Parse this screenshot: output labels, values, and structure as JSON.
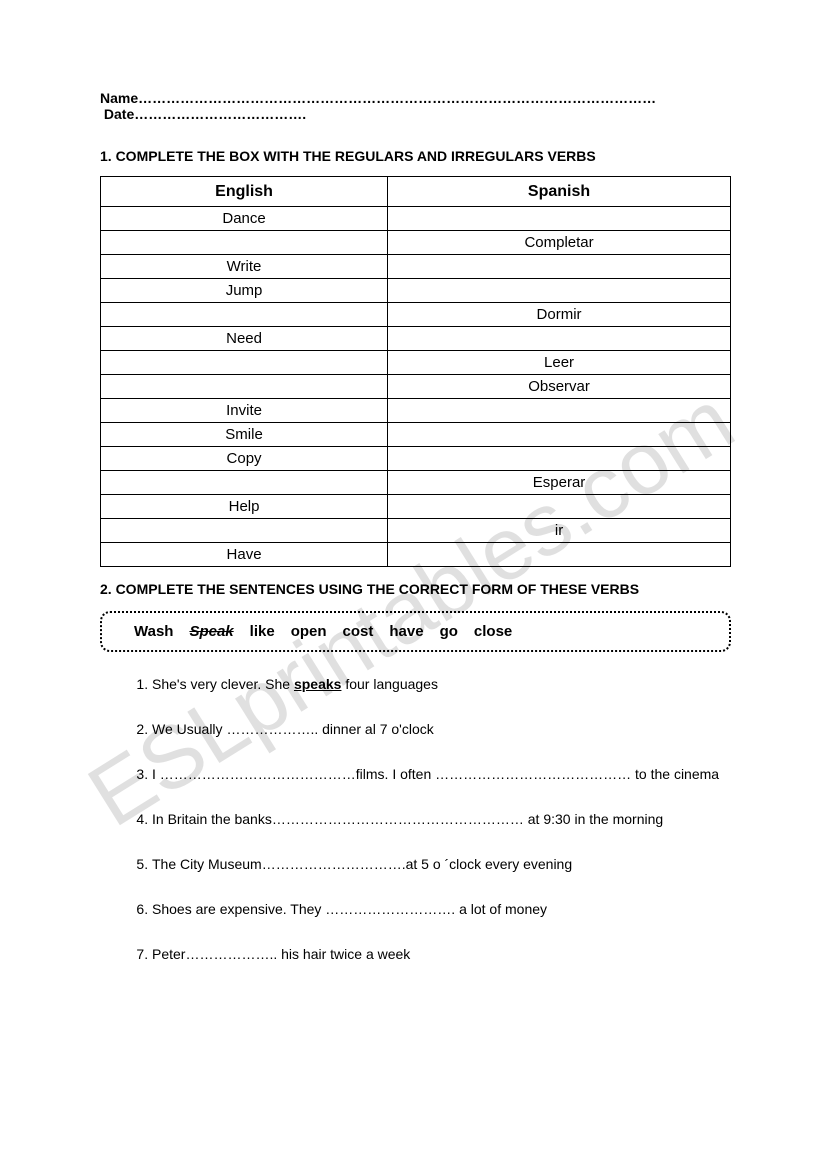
{
  "header": {
    "name_label": "Name",
    "name_dots": "…………………………………………………………………………………………………",
    "date_label": "Date",
    "date_dots": "………………………………."
  },
  "section1": {
    "title": "1. COMPLETE THE BOX WITH THE REGULARS AND IRREGULARS VERBS",
    "col_english": "English",
    "col_spanish": "Spanish",
    "rows": [
      {
        "en": "Dance",
        "es": ""
      },
      {
        "en": "",
        "es": "Completar"
      },
      {
        "en": "Write",
        "es": ""
      },
      {
        "en": "Jump",
        "es": ""
      },
      {
        "en": "",
        "es": "Dormir"
      },
      {
        "en": "Need",
        "es": ""
      },
      {
        "en": "",
        "es": "Leer"
      },
      {
        "en": "",
        "es": "Observar"
      },
      {
        "en": "Invite",
        "es": ""
      },
      {
        "en": "Smile",
        "es": ""
      },
      {
        "en": "Copy",
        "es": ""
      },
      {
        "en": "",
        "es": "Esperar"
      },
      {
        "en": "Help",
        "es": ""
      },
      {
        "en": "",
        "es": "ir"
      },
      {
        "en": "Have",
        "es": ""
      }
    ]
  },
  "section2": {
    "title": "2. COMPLETE THE SENTENCES USING THE CORRECT FORM OF THESE VERBS",
    "words": [
      "Wash",
      "Speak",
      "like",
      "open",
      "cost",
      "have",
      "go",
      "close"
    ],
    "struck_index": 1,
    "sentences": {
      "s1_a": "She's very clever. She ",
      "s1_ans": "speaks",
      "s1_b": " four languages",
      "s2_a": "We Usually ",
      "s2_blank": "………………..",
      "s2_b": " dinner al 7 o'clock",
      "s3_a": "I ",
      "s3_blank1": "……………………………………",
      "s3_b": "films. I often ",
      "s3_blank2": "……………………………………",
      "s3_c": " to the cinema",
      "s4_a": "In Britain the banks",
      "s4_blank": "………………………………………………",
      "s4_b": " at 9:30 in the morning",
      "s5_a": " The City Museum",
      "s5_blank": "………………………….",
      "s5_b": "at 5 o ´clock every evening",
      "s6_a": "Shoes are expensive. They ",
      "s6_blank": "……………………….",
      "s6_b": " a lot of money",
      "s7_a": "Peter",
      "s7_blank": "………………..",
      "s7_b": " his hair twice a week"
    }
  },
  "watermark": "ESLprintables.com"
}
